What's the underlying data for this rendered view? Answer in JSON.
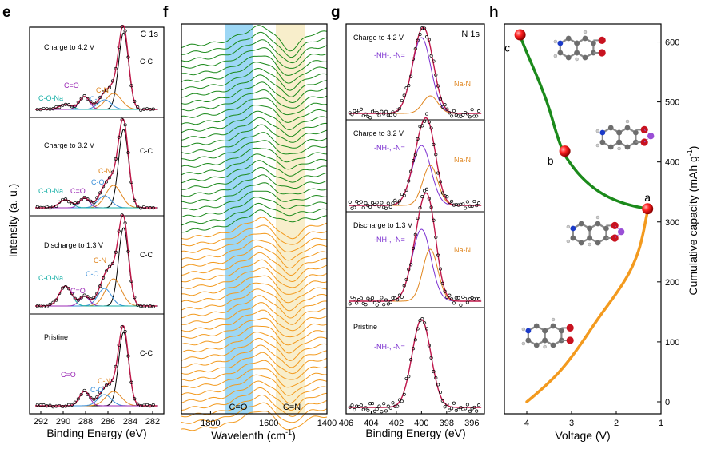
{
  "colors": {
    "co_na": "#1ab1a8",
    "c_o_peak": "#3a8fd9",
    "c_n": "#e0861f",
    "cdo": "#9b28b5",
    "fit": "#c0184a",
    "na_n": "#e0861f",
    "nh": "#7b2fd0",
    "green_curve": "#1b8a1b",
    "orange_curve": "#f39a1e",
    "blue_band": "#7ccaf2",
    "yellow_band": "#f7ebc2",
    "mol_red": "#c8121f",
    "mol_blue": "#1b3ac8",
    "mol_purple": "#9a4fd6",
    "mol_gray": "#6d6d6d"
  },
  "panels": {
    "e": {
      "letter": "e",
      "ylabel": "Intensity (a. u.)",
      "xlabel": "Binding Energy (eV)",
      "corner_tag": "C 1s",
      "stacks": [
        {
          "title": "Charge to 4.2 V",
          "labels": [
            "C=O",
            "C-O-Na",
            "C-O",
            "C-N",
            "C-C"
          ]
        },
        {
          "title": "Charge to 3.2 V",
          "labels": [
            "C=O",
            "C-O-Na",
            "C-O",
            "C-N",
            "C-C"
          ]
        },
        {
          "title": "Discharge to 1.3 V",
          "labels": [
            "C-O-Na",
            "C=O",
            "C-O",
            "C-N",
            "C-C"
          ]
        },
        {
          "title": "Pristine",
          "labels": [
            "C=O",
            "C-O",
            "C-N",
            "C-C"
          ]
        }
      ]
    },
    "f": {
      "letter": "f",
      "xlabel": "Wavelenth (cm",
      "xlabel_sup": "-1",
      "xlabel_end": ")",
      "band_labels": [
        "C=O",
        "C=N"
      ]
    },
    "g": {
      "letter": "g",
      "xlabel": "Binding Energy (eV)",
      "corner_tag": "N 1s",
      "stacks": [
        {
          "title": "Charge to 4.2 V",
          "labels": [
            "-NH-, -N=",
            "Na-N"
          ]
        },
        {
          "title": "Charge to 3.2 V",
          "labels": [
            "-NH-, -N=",
            "Na-N"
          ]
        },
        {
          "title": "Discharge to 1.3 V",
          "labels": [
            "-NH-, -N=",
            "Na-N"
          ]
        },
        {
          "title": "Pristine",
          "labels": [
            "-NH-, -N="
          ]
        }
      ]
    },
    "h": {
      "letter": "h",
      "xlabel": "Voltage (V)",
      "ylabel": "Cumulative capacity (mAh g",
      "ylabel_sup": "-1",
      "ylabel_end": ")",
      "point_labels": [
        "a",
        "b",
        "c"
      ]
    }
  },
  "chart_data": [
    {
      "type": "line",
      "panel": "e",
      "title": "",
      "xlabel": "Binding Energy (eV)",
      "ylabel": "Intensity (a. u.)",
      "x_ticks": [
        292,
        290,
        288,
        286,
        284,
        282
      ],
      "xlim": [
        293,
        281
      ],
      "x_reversed": true,
      "series": [
        {
          "name": "Charge to 4.2 V",
          "peaks": [
            {
              "label": "C=O",
              "x": 288.0
            },
            {
              "label": "C-O-Na",
              "x": 289.8
            },
            {
              "label": "C-O",
              "x": 286.3
            },
            {
              "label": "C-N",
              "x": 285.5
            },
            {
              "label": "C-C",
              "x": 284.6
            }
          ]
        },
        {
          "name": "Charge to 3.2 V",
          "peaks": [
            {
              "label": "C=O",
              "x": 288.0
            },
            {
              "label": "C-O-Na",
              "x": 289.8
            },
            {
              "label": "C-O",
              "x": 286.3
            },
            {
              "label": "C-N",
              "x": 285.5
            },
            {
              "label": "C-C",
              "x": 284.6
            }
          ]
        },
        {
          "name": "Discharge to 1.3 V",
          "peaks": [
            {
              "label": "C-O-Na",
              "x": 289.8
            },
            {
              "label": "C=O",
              "x": 288.0
            },
            {
              "label": "C-O",
              "x": 286.3
            },
            {
              "label": "C-N",
              "x": 285.5
            },
            {
              "label": "C-C",
              "x": 284.6
            }
          ]
        },
        {
          "name": "Pristine",
          "peaks": [
            {
              "label": "C=O",
              "x": 288.2
            },
            {
              "label": "C-O",
              "x": 286.3
            },
            {
              "label": "C-N",
              "x": 285.7
            },
            {
              "label": "C-C",
              "x": 284.6
            }
          ]
        }
      ]
    },
    {
      "type": "line",
      "panel": "f",
      "xlabel": "Wavelenth (cm-1)",
      "x_ticks": [
        1800,
        1600,
        1400
      ],
      "xlim": [
        1900,
        1400
      ],
      "bands": [
        {
          "label": "C=O",
          "range": [
            1740,
            1650
          ]
        },
        {
          "label": "C=N",
          "range": [
            1570,
            1480
          ]
        }
      ],
      "series_count": {
        "green": 27,
        "orange": 28
      }
    },
    {
      "type": "line",
      "panel": "g",
      "xlabel": "Binding Energy (eV)",
      "x_ticks": [
        406,
        404,
        402,
        400,
        398,
        396
      ],
      "xlim": [
        406,
        395
      ],
      "x_reversed": true,
      "series": [
        {
          "name": "Charge to 4.2 V",
          "peaks": [
            {
              "label": "-NH-, -N=",
              "x": 400.0
            },
            {
              "label": "Na-N",
              "x": 399.3
            }
          ]
        },
        {
          "name": "Charge to 3.2 V",
          "peaks": [
            {
              "label": "-NH-, -N=",
              "x": 400.0
            },
            {
              "label": "Na-N",
              "x": 399.3
            }
          ]
        },
        {
          "name": "Discharge to 1.3 V",
          "peaks": [
            {
              "label": "-NH-, -N=",
              "x": 400.0
            },
            {
              "label": "Na-N",
              "x": 399.3
            }
          ]
        },
        {
          "name": "Pristine",
          "peaks": [
            {
              "label": "-NH-, -N=",
              "x": 400.0
            }
          ]
        }
      ]
    },
    {
      "type": "line",
      "panel": "h",
      "xlabel": "Voltage (V)",
      "ylabel": "Cumulative capacity (mAh g-1)",
      "x_ticks": [
        4,
        3,
        2,
        1
      ],
      "y_ticks": [
        0,
        100,
        200,
        300,
        400,
        500,
        600
      ],
      "xlim": [
        4.5,
        1.0
      ],
      "ylim": [
        -20,
        630
      ],
      "x_reversed": true,
      "series": [
        {
          "color": "orange",
          "x": [
            4.0,
            3.6,
            3.2,
            2.8,
            2.4,
            2.0,
            1.7,
            1.5,
            1.4,
            1.35,
            1.3
          ],
          "y": [
            0,
            25,
            55,
            95,
            140,
            180,
            215,
            250,
            280,
            300,
            318
          ]
        },
        {
          "color": "green",
          "x": [
            1.3,
            1.6,
            2.0,
            2.4,
            2.8,
            3.1,
            3.2,
            3.35,
            3.5,
            3.7,
            3.9,
            4.1,
            4.15
          ],
          "y": [
            322,
            326,
            335,
            350,
            375,
            405,
            418,
            450,
            490,
            530,
            565,
            600,
            612
          ]
        }
      ],
      "points": [
        {
          "label": "a",
          "x": 1.3,
          "y": 322
        },
        {
          "label": "b",
          "x": 3.15,
          "y": 418
        },
        {
          "label": "c",
          "x": 4.15,
          "y": 612
        }
      ]
    }
  ]
}
